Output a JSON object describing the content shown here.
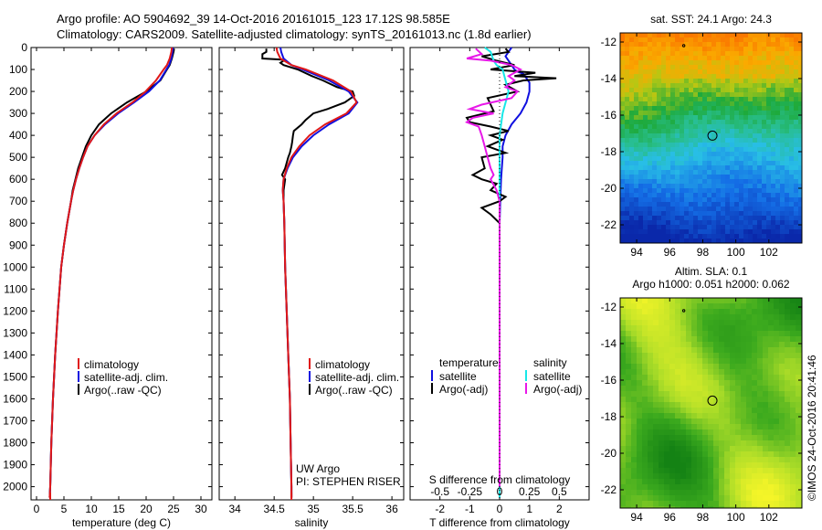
{
  "header": {
    "line1": "Argo profile: AO 5904692_39 14-Oct-2016 20161015_123 17.12S 98.585E",
    "line2": "Climatology: CARS2009. Satellite-adjusted climatology: synTS_20161013.nc (1.8d earlier)"
  },
  "colors": {
    "climatology": "#e01818",
    "satellite": "#1010e0",
    "argo": "#000000",
    "sat_salinity": "#18e8e8",
    "argo_salinity": "#e818e8"
  },
  "depth_axis": {
    "ticks": [
      0,
      100,
      200,
      300,
      400,
      500,
      600,
      700,
      800,
      900,
      1000,
      1100,
      1200,
      1300,
      1400,
      1500,
      1600,
      1700,
      1800,
      1900,
      2000
    ],
    "labels": [
      "0",
      "100",
      "200",
      "300",
      "400",
      "500",
      "600",
      "700",
      "800",
      "900",
      "1000",
      "1100",
      "1200",
      "1300",
      "1400",
      "1500",
      "1600",
      "1700",
      "1800",
      "1900",
      "2000"
    ],
    "range": [
      0,
      2060
    ]
  },
  "chart_data": [
    {
      "type": "line",
      "id": "temperature",
      "title": "",
      "xlabel": "temperature (deg C)",
      "ylabel": "",
      "xlim": [
        -1,
        32
      ],
      "ylim": [
        2060,
        0
      ],
      "xticks": [
        0,
        5,
        10,
        15,
        20,
        25,
        30
      ],
      "xticklabels": [
        "0",
        "5",
        "10",
        "15",
        "20",
        "25",
        "30"
      ],
      "legend": [
        "climatology",
        "satellite-adj. clim.",
        "Argo(..raw -QC)"
      ],
      "legend_placement": "lower-right",
      "series": [
        {
          "name": "Argo(..raw -QC)",
          "color": "argo",
          "depth": [
            5,
            20,
            50,
            80,
            100,
            150,
            200,
            250,
            300,
            350,
            400,
            450,
            500,
            550,
            600,
            650,
            700,
            800,
            900,
            1000,
            1200,
            1400,
            1600,
            1800,
            2000,
            2050
          ],
          "values": [
            25.1,
            25.0,
            24.7,
            24.3,
            23.8,
            22.6,
            20.0,
            16.5,
            13.6,
            11.4,
            10.0,
            9.0,
            8.3,
            7.6,
            7.1,
            6.6,
            6.3,
            5.6,
            5.0,
            4.5,
            3.9,
            3.4,
            3.0,
            2.7,
            2.5,
            2.4
          ]
        },
        {
          "name": "satellite-adj. clim.",
          "color": "satellite",
          "depth": [
            0,
            20,
            50,
            80,
            100,
            150,
            200,
            250,
            300,
            350,
            400,
            450,
            500,
            550,
            600,
            650,
            700,
            800,
            900,
            1000,
            1200,
            1400,
            1600,
            1800,
            2000,
            2050
          ],
          "values": [
            24.9,
            24.8,
            24.6,
            24.2,
            23.7,
            22.5,
            20.5,
            17.8,
            14.9,
            12.5,
            10.6,
            9.3,
            8.5,
            7.8,
            7.2,
            6.7,
            6.3,
            5.6,
            5.0,
            4.5,
            3.9,
            3.4,
            3.0,
            2.7,
            2.5,
            2.4
          ]
        },
        {
          "name": "climatology",
          "color": "climatology",
          "depth": [
            0,
            20,
            50,
            80,
            100,
            150,
            200,
            250,
            300,
            350,
            400,
            450,
            500,
            550,
            600,
            650,
            700,
            800,
            900,
            1000,
            1200,
            1400,
            1600,
            1800,
            2000,
            2050
          ],
          "values": [
            24.7,
            24.6,
            24.3,
            23.8,
            23.2,
            21.8,
            19.9,
            17.5,
            14.6,
            12.3,
            10.6,
            9.3,
            8.5,
            7.8,
            7.2,
            6.7,
            6.3,
            5.6,
            5.0,
            4.5,
            3.9,
            3.4,
            3.0,
            2.7,
            2.5,
            2.4
          ]
        }
      ]
    },
    {
      "type": "line",
      "id": "salinity",
      "title": "",
      "xlabel": "salinity",
      "ylabel": "",
      "xlim": [
        33.8,
        36.15
      ],
      "ylim": [
        2060,
        0
      ],
      "xticks": [
        34,
        34.5,
        35,
        35.5,
        36
      ],
      "xticklabels": [
        "34",
        "34.5",
        "35",
        "35.5",
        "36"
      ],
      "legend": [
        "climatology",
        "satellite-adj. clim.",
        "Argo(..raw -QC)"
      ],
      "legend_placement": "lower-right",
      "annotations": [
        "UW Argo",
        "PI: STEPHEN RISER"
      ],
      "series": [
        {
          "name": "Argo(..raw -QC)",
          "color": "argo",
          "depth": [
            5,
            20,
            30,
            50,
            55,
            60,
            70,
            80,
            100,
            130,
            150,
            180,
            200,
            220,
            250,
            280,
            300,
            330,
            350,
            380,
            400,
            430,
            450,
            480,
            500,
            550,
            580,
            600,
            650,
            700,
            800,
            1000,
            1200,
            1400,
            1600,
            1800,
            2000,
            2050
          ],
          "values": [
            34.4,
            34.4,
            34.35,
            34.35,
            34.6,
            34.62,
            34.58,
            34.62,
            34.8,
            34.98,
            35.12,
            35.3,
            35.5,
            35.52,
            35.4,
            35.18,
            35.0,
            34.9,
            34.85,
            34.75,
            34.74,
            34.73,
            34.72,
            34.7,
            34.68,
            34.64,
            34.6,
            34.64,
            34.62,
            34.62,
            34.63,
            34.64,
            34.66,
            34.68,
            34.7,
            34.71,
            34.72,
            34.72
          ]
        },
        {
          "name": "satellite-adj. clim.",
          "color": "satellite",
          "depth": [
            0,
            20,
            50,
            80,
            100,
            150,
            200,
            250,
            300,
            350,
            400,
            450,
            500,
            550,
            600,
            650,
            700,
            800,
            1000,
            1200,
            1400,
            1600,
            1800,
            2000,
            2050
          ],
          "values": [
            34.58,
            34.59,
            34.62,
            34.72,
            34.86,
            35.2,
            35.45,
            35.56,
            35.45,
            35.2,
            35.0,
            34.85,
            34.74,
            34.67,
            34.62,
            34.61,
            34.62,
            34.63,
            34.64,
            34.66,
            34.68,
            34.7,
            34.71,
            34.72,
            34.72
          ]
        },
        {
          "name": "climatology",
          "color": "climatology",
          "depth": [
            0,
            20,
            50,
            80,
            100,
            150,
            200,
            250,
            300,
            350,
            400,
            450,
            500,
            550,
            600,
            650,
            700,
            800,
            1000,
            1200,
            1400,
            1600,
            1800,
            2000,
            2050
          ],
          "values": [
            34.53,
            34.54,
            34.58,
            34.72,
            34.9,
            35.25,
            35.48,
            35.55,
            35.42,
            35.15,
            34.95,
            34.82,
            34.72,
            34.66,
            34.62,
            34.61,
            34.62,
            34.63,
            34.64,
            34.66,
            34.68,
            34.7,
            34.71,
            34.72,
            34.72
          ]
        }
      ]
    },
    {
      "type": "line",
      "id": "difference",
      "title": "",
      "xlabel": "T difference from climatology",
      "xlabel_top": "S difference from climatology",
      "ylabel": "",
      "xlim": [
        -3,
        3
      ],
      "ylim": [
        2060,
        0
      ],
      "xticks": [
        -2,
        -1,
        0,
        1,
        2
      ],
      "xticklabels": [
        "-2",
        "-1",
        "0",
        "1",
        "2"
      ],
      "xticks_s": [
        -2,
        -1,
        0,
        1,
        2
      ],
      "xticklabels_s": [
        "-0.5",
        "-0.25",
        "0",
        "0.25",
        "0.5"
      ],
      "legend_left_title": "temperature",
      "legend_left": [
        "satellite",
        "Argo(-adj)"
      ],
      "legend_right_title": "salinity",
      "legend_right": [
        "satellite",
        "Argo(-adj)"
      ],
      "legend_placement": "lower-center",
      "series": [
        {
          "name": "temperature satellite",
          "color": "satellite",
          "depth": [
            0,
            20,
            40,
            60,
            80,
            100,
            110,
            120,
            140,
            160,
            200,
            250,
            300,
            350,
            400,
            450,
            500,
            600,
            700,
            800,
            1000,
            1500,
            2000,
            2050
          ],
          "values": [
            0.4,
            0.3,
            0.2,
            0.3,
            0.4,
            0.5,
            0.6,
            0.8,
            0.9,
            1.0,
            1.0,
            0.9,
            0.7,
            0.4,
            0.2,
            0.1,
            0.1,
            0.05,
            0.02,
            0.0,
            0.0,
            0.0,
            0.0,
            0.0
          ]
        },
        {
          "name": "temperature Argo(-adj)",
          "color": "argo",
          "depth": [
            5,
            20,
            40,
            60,
            80,
            100,
            115,
            130,
            140,
            150,
            170,
            200,
            230,
            260,
            290,
            320,
            340,
            360,
            380,
            400,
            420,
            450,
            480,
            500,
            550,
            580,
            600,
            620,
            650,
            680,
            700,
            730,
            760,
            800,
            1000,
            1500,
            2000,
            2050
          ],
          "values": [
            0.2,
            0.3,
            -0.6,
            -0.1,
            0.5,
            -0.3,
            1.2,
            0.5,
            1.9,
            0.8,
            0.2,
            0.6,
            -0.4,
            -0.3,
            -0.2,
            -1.1,
            -1.0,
            -0.3,
            0.3,
            -0.3,
            0.1,
            -0.4,
            0.2,
            -0.6,
            -0.5,
            -0.9,
            -0.6,
            -0.1,
            -0.3,
            0.2,
            0.0,
            -0.6,
            -0.3,
            0.0,
            0.0,
            0.0,
            0.0,
            0.0
          ]
        },
        {
          "name": "salinity satellite",
          "color": "sat_salinity",
          "depth": [
            0,
            20,
            40,
            60,
            80,
            100,
            150,
            200,
            300,
            400,
            500,
            600,
            800,
            1000,
            1500,
            2000,
            2050
          ],
          "values": [
            -0.5,
            -0.3,
            -0.25,
            -0.2,
            -0.1,
            0.1,
            0.2,
            0.3,
            0.1,
            0.0,
            0.0,
            0.0,
            0.0,
            0.0,
            0.0,
            0.0,
            0.0
          ]
        },
        {
          "name": "salinity Argo(-adj)",
          "color": "argo_salinity",
          "depth": [
            5,
            30,
            50,
            60,
            80,
            100,
            130,
            150,
            180,
            200,
            230,
            260,
            280,
            300,
            320,
            340,
            360,
            400,
            450,
            500,
            550,
            580,
            600,
            650,
            700,
            800,
            1000,
            1500,
            2000
          ],
          "values": [
            -0.8,
            -0.6,
            -1.1,
            -0.3,
            0.4,
            0.7,
            0.3,
            0.5,
            0.2,
            0.6,
            0.4,
            -0.6,
            -1.0,
            -0.2,
            -0.9,
            -1.1,
            -0.7,
            -0.6,
            -0.5,
            -0.4,
            -0.3,
            -0.2,
            -0.3,
            -0.1,
            0.0,
            0.0,
            0.0,
            0.0,
            0.0
          ]
        }
      ]
    },
    {
      "type": "heatmap",
      "id": "sst_map",
      "title": "sat. SST: 24.1  Argo: 24.3",
      "xlim": [
        93,
        104
      ],
      "ylim": [
        -23,
        -11.5
      ],
      "xticks": [
        94,
        96,
        98,
        100,
        102
      ],
      "xticklabels": [
        "94",
        "96",
        "98",
        "100",
        "102"
      ],
      "yticks": [
        -12,
        -14,
        -16,
        -18,
        -20,
        -22
      ],
      "yticklabels": [
        "-12",
        "-14",
        "-16",
        "-18",
        "-20",
        "-22"
      ],
      "marker": {
        "lon": 98.585,
        "lat": -17.12
      },
      "small_marker": {
        "lon": 96.85,
        "lat": -12.2
      }
    },
    {
      "type": "heatmap",
      "id": "sla_map",
      "title": "Altim. SLA: 0.1",
      "subtitle": "Argo h1000: 0.051 h2000: 0.062",
      "xlim": [
        93,
        104
      ],
      "ylim": [
        -23,
        -11.5
      ],
      "xticks": [
        94,
        96,
        98,
        100,
        102
      ],
      "xticklabels": [
        "94",
        "96",
        "98",
        "100",
        "102"
      ],
      "yticks": [
        -12,
        -14,
        -16,
        -18,
        -20,
        -22
      ],
      "yticklabels": [
        "-12",
        "-14",
        "-16",
        "-18",
        "-20",
        "-22"
      ],
      "marker": {
        "lon": 98.585,
        "lat": -17.12
      },
      "small_marker": {
        "lon": 96.85,
        "lat": -12.2
      }
    }
  ],
  "credit": "©IMOS 24-Oct-2016 20:41:46"
}
